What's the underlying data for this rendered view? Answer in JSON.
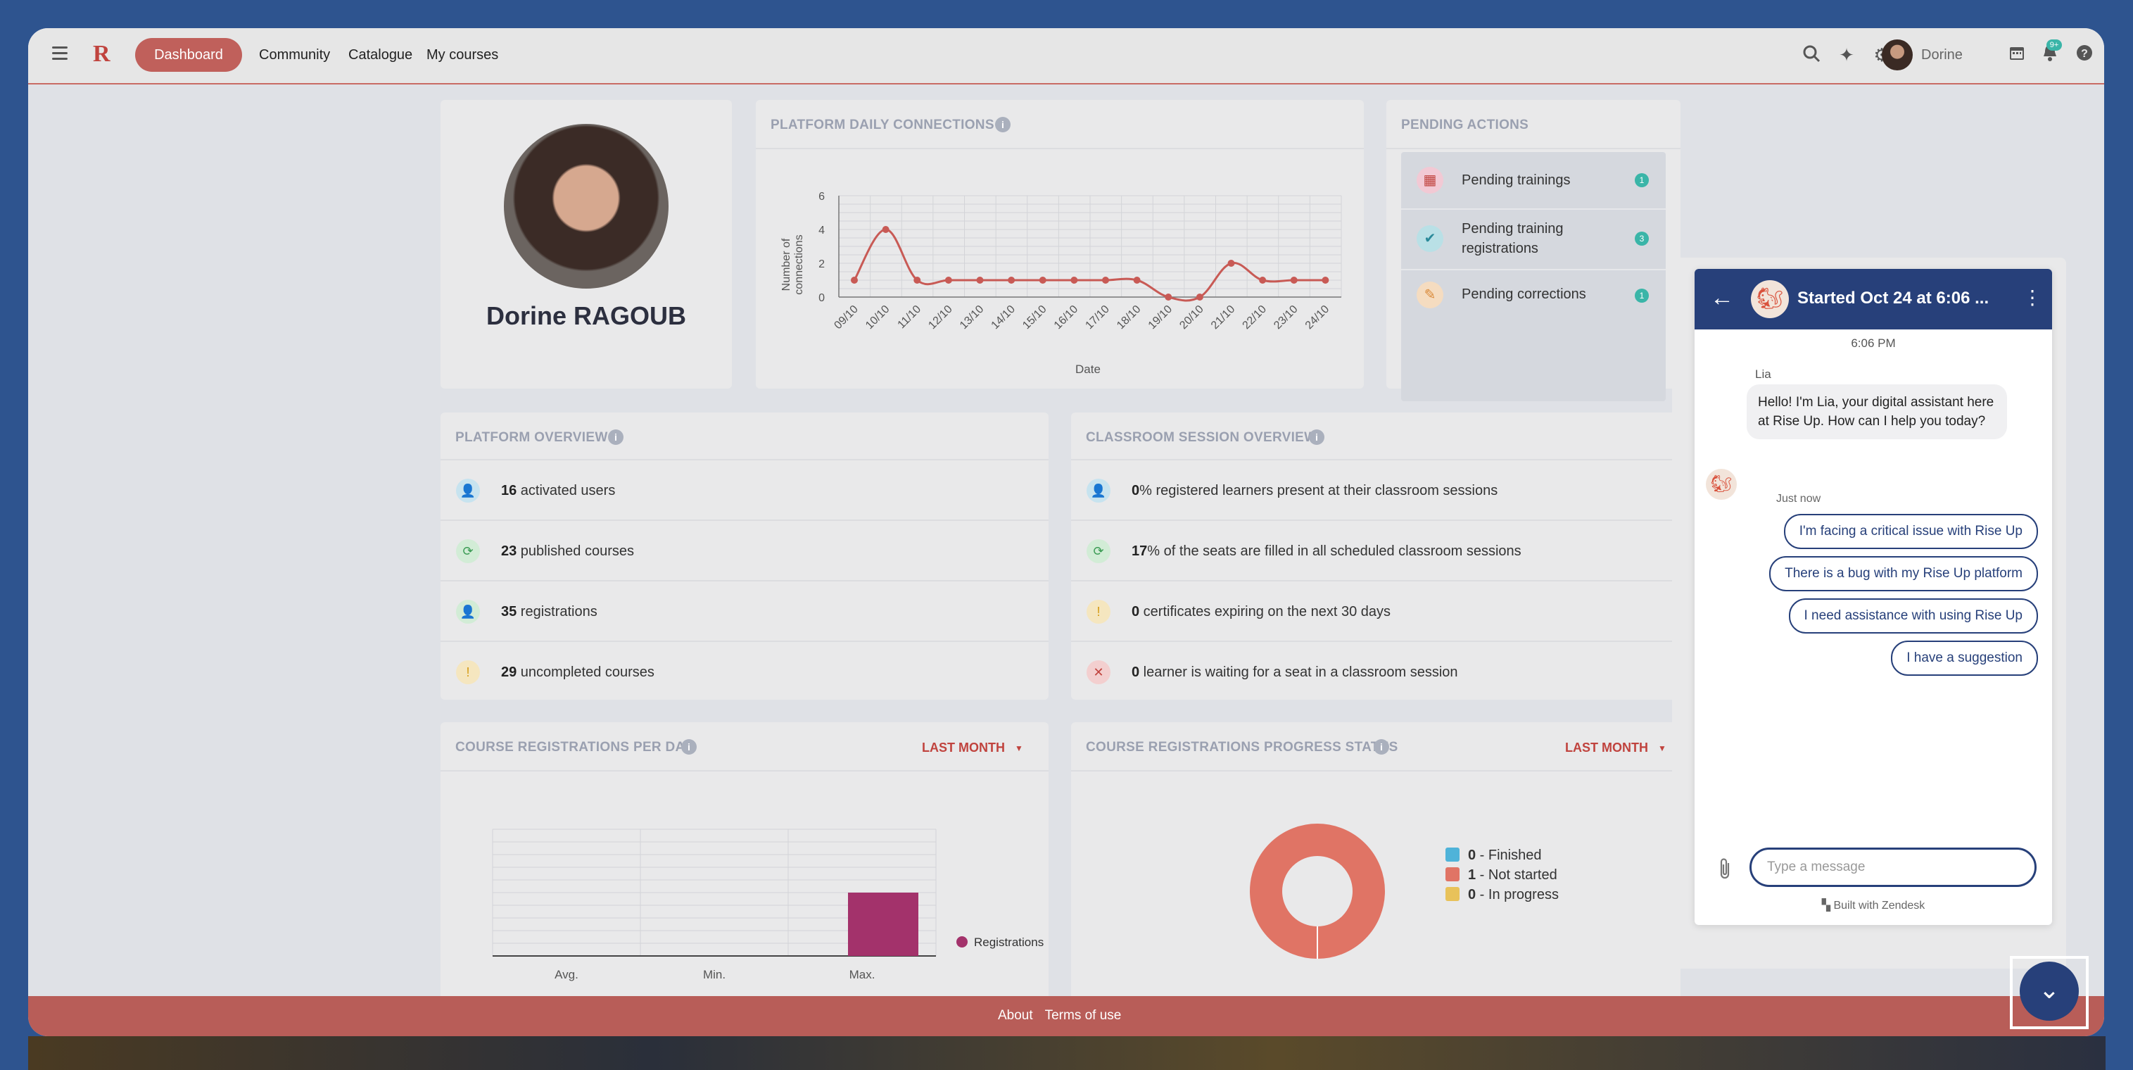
{
  "header": {
    "nav": {
      "dashboard": "Dashboard",
      "community": "Community",
      "catalogue": "Catalogue",
      "my_courses": "My courses"
    },
    "user_name": "Dorine",
    "notifications_badge": "9+",
    "icons": [
      "menu-icon",
      "logo",
      "search-icon",
      "sparkle-icon",
      "gear-icon",
      "avatar",
      "calendar-icon",
      "bell-icon",
      "help-icon"
    ]
  },
  "profile": {
    "name": "Dorine RAGOUB"
  },
  "daily_connections": {
    "title": "PLATFORM DAILY CONNECTIONS",
    "chart_data": {
      "type": "line",
      "title": "PLATFORM DAILY CONNECTIONS",
      "xlabel": "Date",
      "ylabel": "Number of connections",
      "categories": [
        "09/10",
        "10/10",
        "11/10",
        "12/10",
        "13/10",
        "14/10",
        "15/10",
        "16/10",
        "17/10",
        "18/10",
        "19/10",
        "20/10",
        "21/10",
        "22/10",
        "23/10",
        "24/10"
      ],
      "values": [
        1,
        4,
        1,
        1,
        1,
        1,
        1,
        1,
        1,
        1,
        0,
        0,
        2,
        1,
        1,
        1
      ],
      "yticks": [
        0,
        2,
        4,
        6
      ],
      "ylim": [
        0,
        6
      ],
      "grid": true,
      "color": "#c85a55"
    }
  },
  "pending_actions": {
    "title": "PENDING ACTIONS",
    "items": [
      {
        "label": "Pending trainings",
        "count": "1"
      },
      {
        "label": "Pending training registrations",
        "count": "3"
      },
      {
        "label": "Pending corrections",
        "count": "1"
      }
    ]
  },
  "platform_overview": {
    "title": "PLATFORM OVERVIEW",
    "rows": [
      {
        "value": "16",
        "text": " activated users",
        "icon": "user-icon"
      },
      {
        "value": "23",
        "text": " published courses",
        "icon": "refresh-icon"
      },
      {
        "value": "35",
        "text": " registrations",
        "icon": "user-add-icon"
      },
      {
        "value": "29",
        "text": " uncompleted courses",
        "icon": "warning-icon"
      }
    ]
  },
  "classroom_overview": {
    "title": "CLASSROOM SESSION OVERVIEW",
    "rows": [
      {
        "value": "0",
        "text": "% registered learners present at their classroom sessions",
        "icon": "user-icon"
      },
      {
        "value": "17",
        "text": "% of the seats are filled in all scheduled classroom sessions",
        "icon": "refresh-icon"
      },
      {
        "value": "0",
        "text": " certificates expiring on the next 30 days",
        "icon": "warning-icon"
      },
      {
        "value": "0",
        "text": " learner is waiting for a seat in a classroom session",
        "icon": "error-icon"
      }
    ]
  },
  "registrations_per_day": {
    "title": "COURSE REGISTRATIONS PER DAY",
    "filter": "LAST MONTH",
    "chart_data": {
      "type": "bar",
      "categories": [
        "Avg.",
        "Min.",
        "Max."
      ],
      "series": [
        {
          "name": "Registrations",
          "values": [
            0,
            0,
            1
          ]
        }
      ],
      "ylim": [
        0,
        2
      ],
      "grid": true,
      "legend": "right",
      "color": "#a3326b"
    }
  },
  "progress_status": {
    "title": "COURSE REGISTRATIONS PROGRESS STATUS",
    "filter": "LAST MONTH",
    "chart_data": {
      "type": "pie",
      "slices": [
        {
          "name": "Finished",
          "value": 0,
          "color": "#4fb3d9"
        },
        {
          "name": "Not started",
          "value": 1,
          "color": "#e07465"
        },
        {
          "name": "In progress",
          "value": 0,
          "color": "#e8c25a"
        }
      ],
      "legend": "right"
    },
    "legend": [
      {
        "count": "0",
        "label": " - Finished"
      },
      {
        "count": "1",
        "label": " - Not started"
      },
      {
        "count": "0",
        "label": " - In progress"
      }
    ]
  },
  "footer": {
    "about": "About",
    "terms": "Terms of use"
  },
  "chat": {
    "title": "Started Oct 24 at 6:06 ...",
    "time": "6:06 PM",
    "sender": "Lia",
    "message": "Hello! I'm Lia, your digital assistant here at Rise Up. How can I help you today?",
    "just_now": "Just now",
    "quick_replies": [
      "I'm facing a critical issue with Rise Up",
      "There is a bug with my Rise Up platform",
      "I need assistance with using Rise Up",
      "I have a suggestion"
    ],
    "input_placeholder": "Type a message",
    "powered_by": "Built with Zendesk"
  }
}
